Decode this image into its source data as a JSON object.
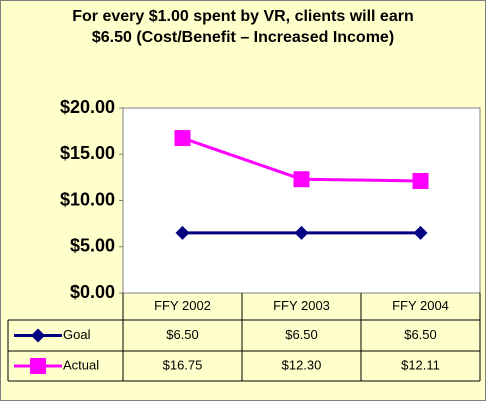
{
  "chart_data": {
    "type": "line",
    "title": "For every $1.00 spent by VR, clients will earn $6.50 (Cost/Benefit – Increased Income)",
    "categories": [
      "FFY 2002",
      "FFY 2003",
      "FFY 2004"
    ],
    "series": [
      {
        "name": "Goal",
        "color": "#000080",
        "marker": "diamond",
        "values": [
          6.5,
          6.5,
          6.5
        ],
        "value_labels": [
          "$6.50",
          "$6.50",
          "$6.50"
        ]
      },
      {
        "name": "Actual",
        "color": "#ff00ff",
        "marker": "square",
        "values": [
          16.75,
          12.3,
          12.11
        ],
        "value_labels": [
          "$16.75",
          "$12.30",
          "$12.11"
        ]
      }
    ],
    "ylim": [
      0,
      20
    ],
    "yticks": [
      {
        "value": 0,
        "label": "$0.00"
      },
      {
        "value": 5,
        "label": "$5.00"
      },
      {
        "value": 10,
        "label": "$10.00"
      },
      {
        "value": 15,
        "label": "$15.00"
      },
      {
        "value": 20,
        "label": "$20.00"
      }
    ],
    "grid": false
  }
}
